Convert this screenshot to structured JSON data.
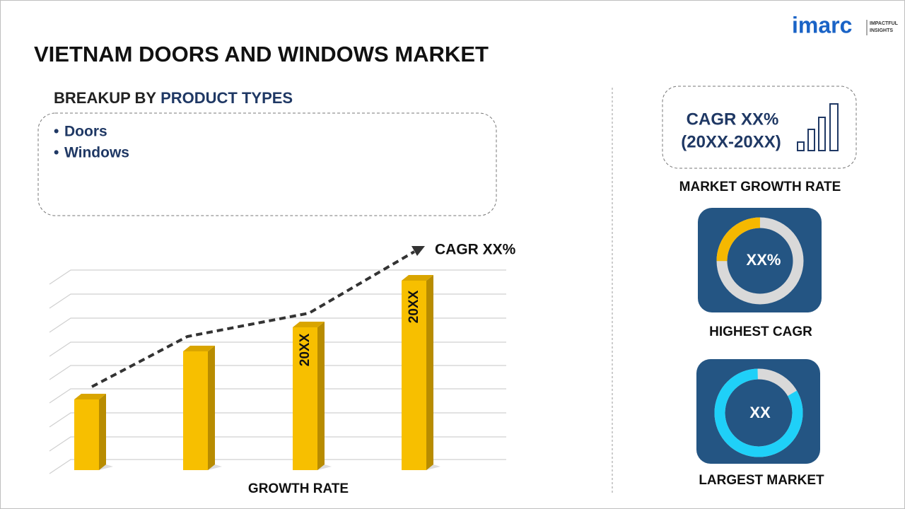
{
  "header": {
    "logo": {
      "name": "imarc",
      "tagline": [
        "IMPACTFUL",
        "INSIGHTS"
      ]
    },
    "title": "VIETNAM DOORS AND WINDOWS MARKET"
  },
  "breakup": {
    "label": "BREAKUP BY",
    "highlight": "PRODUCT TYPES",
    "items": [
      "Doors",
      "Windows"
    ]
  },
  "growth_chart": {
    "annotation": "CAGR XX%",
    "bar_labels": [
      "20XX",
      "20XX"
    ],
    "caption": "GROWTH RATE"
  },
  "cards": [
    {
      "value": "CAGR XX%",
      "period": "(20XX-20XX)",
      "caption": "MARKET GROWTH RATE"
    },
    {
      "value": "XX%",
      "caption": "HIGHEST CAGR"
    },
    {
      "value": "XX",
      "caption": "LARGEST MARKET"
    }
  ]
}
